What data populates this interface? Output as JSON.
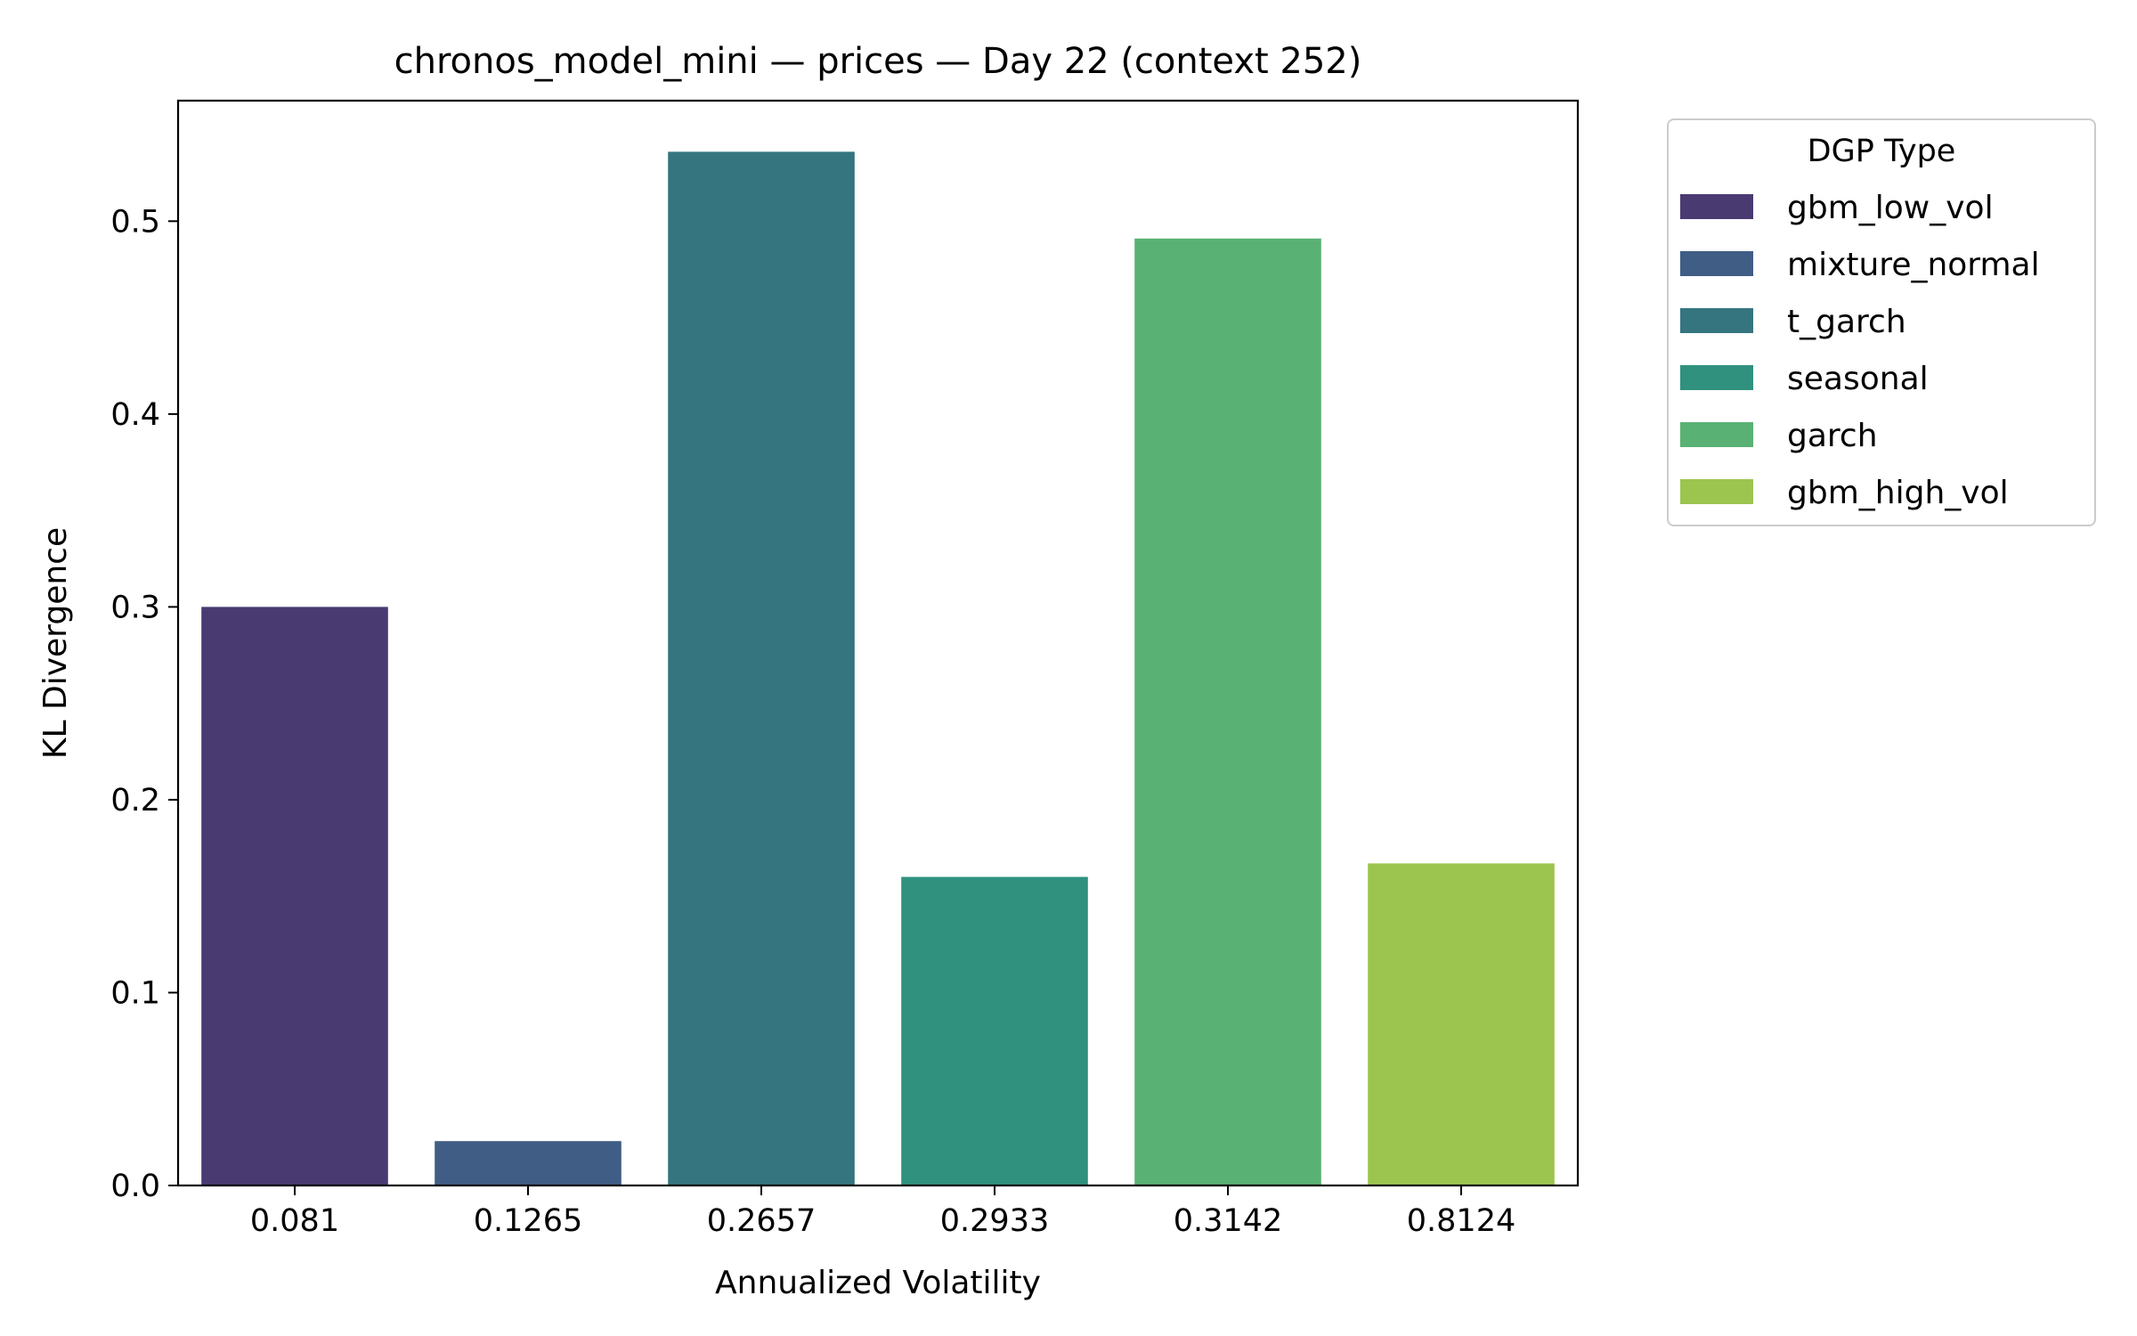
{
  "chart_data": {
    "type": "bar",
    "title": "chronos_model_mini — prices — Day 22 (context 252)",
    "xlabel": "Annualized Volatility",
    "ylabel": "KL Divergence",
    "categories": [
      "0.081",
      "0.1265",
      "0.2657",
      "0.2933",
      "0.3142",
      "0.8124"
    ],
    "values": [
      0.3,
      0.023,
      0.536,
      0.16,
      0.491,
      0.167
    ],
    "series_names": [
      "gbm_low_vol",
      "mixture_normal",
      "t_garch",
      "seasonal",
      "garch",
      "gbm_high_vol"
    ],
    "colors": [
      "#4a3a72",
      "#405d85",
      "#35757f",
      "#2f917e",
      "#5ab174",
      "#9bc54e"
    ],
    "ylim": [
      0,
      0.5625
    ],
    "yticks": [
      0.0,
      0.1,
      0.2,
      0.3,
      0.4,
      0.5
    ],
    "ytick_labels": [
      "0.0",
      "0.1",
      "0.2",
      "0.3",
      "0.4",
      "0.5"
    ],
    "grid": false,
    "legend": {
      "title": "DGP Type",
      "placement": "outside-top-right"
    }
  }
}
